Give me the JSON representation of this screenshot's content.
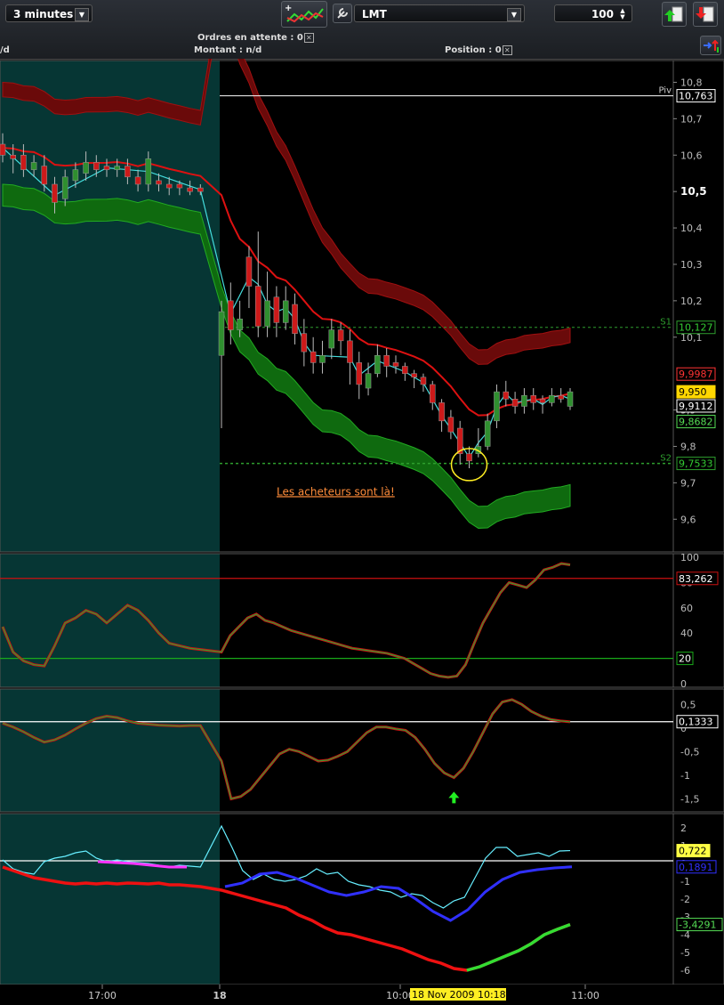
{
  "toolbar": {
    "timeframe": "3 minutes",
    "symbol": "LMT",
    "quantity": "100",
    "pending_orders_label": "Ordres en attente : 0",
    "amount_label": "Montant : n/d",
    "position_label": "Position : 0",
    "left_cut_label": "/d"
  },
  "chart_data": [
    {
      "type": "candlestick",
      "panel": "price",
      "y_ticks": [
        "10,8",
        "10,7",
        "10,6",
        "10,5",
        "10,4",
        "10,3",
        "10,2",
        "10,1",
        "9,9",
        "9,8",
        "9,7",
        "9,6"
      ],
      "ylim": [
        9.52,
        10.85
      ],
      "levels": [
        {
          "name": "Piv",
          "value": 10.763,
          "label": "10,763",
          "color": "#ffffff"
        },
        {
          "name": "S1",
          "value": 10.127,
          "label": "10,127",
          "color": "#2e9e2e"
        },
        {
          "name": "S2",
          "value": 9.7533,
          "label": "9,7533",
          "color": "#2e9e2e"
        }
      ],
      "value_tags": [
        {
          "value": 9.9987,
          "label": "9,9987",
          "color": "#ff3333",
          "bg": "#000000"
        },
        {
          "value": 9.95,
          "label": "9,950",
          "color": "#000000",
          "bg": "#ffd700"
        },
        {
          "value": 9.9112,
          "label": "9,9112",
          "color": "#ffffff",
          "bg": "#000000"
        },
        {
          "value": 9.8682,
          "label": "9,8682",
          "color": "#55dd55",
          "bg": "#000000"
        }
      ],
      "annotation": "Les acheteurs sont là!",
      "candles": [
        [
          10.63,
          10.6,
          10.66,
          10.58
        ],
        [
          10.6,
          10.59,
          10.63,
          10.55
        ],
        [
          10.6,
          10.56,
          10.63,
          10.54
        ],
        [
          10.56,
          10.58,
          10.6,
          10.54
        ],
        [
          10.57,
          10.52,
          10.6,
          10.5
        ],
        [
          10.52,
          10.47,
          10.54,
          10.44
        ],
        [
          10.48,
          10.54,
          10.56,
          10.46
        ],
        [
          10.53,
          10.56,
          10.58,
          10.51
        ],
        [
          10.55,
          10.58,
          10.61,
          10.53
        ],
        [
          10.58,
          10.56,
          10.6,
          10.54
        ],
        [
          10.57,
          10.56,
          10.59,
          10.54
        ],
        [
          10.56,
          10.57,
          10.59,
          10.54
        ],
        [
          10.57,
          10.54,
          10.59,
          10.52
        ],
        [
          10.54,
          10.52,
          10.56,
          10.5
        ],
        [
          10.52,
          10.59,
          10.61,
          10.5
        ],
        [
          10.53,
          10.52,
          10.55,
          10.5
        ],
        [
          10.52,
          10.51,
          10.54,
          10.49
        ],
        [
          10.52,
          10.51,
          10.53,
          10.49
        ],
        [
          10.51,
          10.5,
          10.53,
          10.49
        ],
        [
          10.51,
          10.5,
          10.52,
          10.49
        ],
        [
          10.05,
          10.17,
          10.2,
          9.85
        ],
        [
          10.2,
          10.12,
          10.25,
          10.08
        ],
        [
          10.12,
          10.15,
          10.2,
          10.1
        ],
        [
          10.32,
          10.24,
          10.35,
          10.18
        ],
        [
          10.24,
          10.13,
          10.39,
          10.1
        ],
        [
          10.13,
          10.2,
          10.28,
          10.1
        ],
        [
          10.21,
          10.14,
          10.24,
          10.1
        ],
        [
          10.14,
          10.2,
          10.24,
          10.12
        ],
        [
          10.19,
          10.11,
          10.22,
          10.08
        ],
        [
          10.11,
          10.06,
          10.15,
          10.02
        ],
        [
          10.06,
          10.03,
          10.1,
          10.0
        ],
        [
          10.03,
          10.05,
          10.09,
          10.0
        ],
        [
          10.07,
          10.12,
          10.15,
          10.04
        ],
        [
          10.12,
          10.09,
          10.14,
          10.05
        ],
        [
          10.09,
          10.03,
          10.12,
          9.97
        ],
        [
          10.03,
          9.97,
          10.06,
          9.93
        ],
        [
          9.96,
          10.0,
          10.03,
          9.94
        ],
        [
          10.0,
          10.05,
          10.08,
          9.99
        ],
        [
          10.05,
          10.02,
          10.07,
          9.99
        ],
        [
          10.03,
          10.02,
          10.05,
          10.0
        ],
        [
          10.02,
          10.0,
          10.03,
          9.98
        ],
        [
          10.0,
          9.99,
          10.01,
          9.96
        ],
        [
          9.99,
          9.97,
          10.0,
          9.95
        ],
        [
          9.97,
          9.92,
          9.98,
          9.9
        ],
        [
          9.92,
          9.87,
          9.93,
          9.84
        ],
        [
          9.88,
          9.84,
          9.9,
          9.82
        ],
        [
          9.85,
          9.78,
          9.87,
          9.75
        ],
        [
          9.78,
          9.76,
          9.8,
          9.74
        ],
        [
          9.78,
          9.8,
          9.85,
          9.77
        ],
        [
          9.8,
          9.87,
          9.89,
          9.79
        ],
        [
          9.87,
          9.95,
          9.97,
          9.85
        ],
        [
          9.95,
          9.93,
          9.98,
          9.91
        ],
        [
          9.93,
          9.91,
          9.95,
          9.89
        ],
        [
          9.91,
          9.94,
          9.96,
          9.89
        ],
        [
          9.94,
          9.92,
          9.96,
          9.9
        ],
        [
          9.93,
          9.92,
          9.94,
          9.89
        ],
        [
          9.92,
          9.94,
          9.96,
          9.91
        ],
        [
          9.94,
          9.93,
          9.96,
          9.92
        ],
        [
          9.91,
          9.95,
          9.96,
          9.9
        ]
      ]
    },
    {
      "type": "line",
      "panel": "stochastic",
      "y_ticks": [
        "100",
        "80",
        "60",
        "40",
        "20",
        "0"
      ],
      "ylim": [
        0,
        100
      ],
      "levels": [
        {
          "value": 83.262,
          "label": "83,262",
          "color": "#cc1111"
        },
        {
          "value": 20,
          "label": "20",
          "color": "#1aaa1a"
        }
      ],
      "values": [
        45,
        25,
        18,
        15,
        14,
        30,
        48,
        52,
        58,
        55,
        48,
        55,
        62,
        58,
        50,
        40,
        32,
        30,
        28,
        27,
        25,
        38,
        45,
        52,
        55,
        50,
        48,
        45,
        42,
        40,
        38,
        36,
        34,
        32,
        30,
        28,
        27,
        26,
        25,
        24,
        22,
        20,
        16,
        12,
        8,
        6,
        5,
        6,
        15,
        32,
        48,
        60,
        72,
        80,
        78,
        76,
        82,
        90,
        92,
        95,
        94
      ]
    },
    {
      "type": "line",
      "panel": "oscillator",
      "y_ticks": [
        "0,5",
        "0",
        "-0,5",
        "-1",
        "-1,5"
      ],
      "ylim": [
        -1.7,
        0.75
      ],
      "levels": [
        {
          "value": 0.1333,
          "label": "0,1333",
          "color": "#ffffff"
        }
      ],
      "values": [
        0.1,
        0.02,
        -0.08,
        -0.2,
        -0.3,
        -0.25,
        -0.15,
        -0.02,
        0.1,
        0.2,
        0.25,
        0.22,
        0.15,
        0.1,
        0.08,
        0.06,
        0.05,
        0.04,
        0.05,
        0.05,
        -0.7,
        -1.5,
        -1.45,
        -1.3,
        -1.05,
        -0.8,
        -0.55,
        -0.45,
        -0.5,
        -0.6,
        -0.7,
        -0.68,
        -0.6,
        -0.5,
        -0.3,
        -0.1,
        0.02,
        0.02,
        -0.02,
        -0.05,
        -0.2,
        -0.45,
        -0.75,
        -0.95,
        -1.05,
        -0.85,
        -0.5,
        -0.1,
        0.3,
        0.55,
        0.6,
        0.5,
        0.35,
        0.25,
        0.18,
        0.15,
        0.13
      ]
    },
    {
      "type": "line",
      "panel": "trend",
      "y_ticks": [
        "2",
        "1",
        "0",
        "-1",
        "-2",
        "-3",
        "-4",
        "-5",
        "-6"
      ],
      "ylim": [
        -6.6,
        2.6
      ],
      "levels": [
        {
          "value": 0.15,
          "label": "",
          "color": "#ffffff"
        }
      ],
      "value_tags": [
        {
          "value": 0.722,
          "label": "0,722",
          "color": "#000000",
          "bg": "#ffff44"
        },
        {
          "value": -0.1891,
          "label": "0,1891",
          "color": "#3030ff",
          "bg": "#000000"
        },
        {
          "value": -3.4291,
          "label": "-3,4291",
          "color": "#55dd55",
          "bg": "#000000"
        }
      ],
      "series": [
        {
          "color": "#66eeff",
          "values": [
            0.2,
            -0.3,
            -0.5,
            -0.6,
            0.1,
            0.3,
            0.4,
            0.6,
            0.7,
            0.3,
            0.1,
            0.2,
            0.1,
            0.05,
            0.0,
            -0.1,
            -0.2,
            -0.1,
            -0.15,
            -0.2,
            2.1,
            0.9,
            -0.4,
            -0.9,
            -0.6,
            -0.9,
            -1.0,
            -0.9,
            -0.7,
            -0.3,
            -0.6,
            -0.5,
            -1.0,
            -1.2,
            -1.3,
            -1.5,
            -1.6,
            -1.9,
            -1.7,
            -1.8,
            -2.2,
            -2.5,
            -2.1,
            -1.9,
            -0.8,
            0.3,
            0.9,
            0.9,
            0.4,
            0.5,
            0.6,
            0.4,
            0.7,
            0.722
          ]
        },
        {
          "color": "#3030ff",
          "segments": [
            {
              "color": "#ff33ff",
              "values": [
                0.1,
                0.05,
                0.0,
                -0.1,
                -0.2,
                -0.2
              ]
            },
            {
              "color": "#3030ff",
              "values": [
                -1.3,
                -1.1,
                -0.6,
                -0.5,
                -0.8,
                -1.2,
                -1.6,
                -1.8,
                -1.6,
                -1.3,
                -1.4,
                -2.0,
                -2.7,
                -3.2,
                -2.6,
                -1.6,
                -0.9,
                -0.5,
                -0.35,
                -0.25,
                -0.19
              ]
            }
          ]
        },
        {
          "color": "#ee1111",
          "values": [
            -0.2,
            -0.4,
            -0.6,
            -0.8,
            -0.9,
            -1.0,
            -1.1,
            -1.15,
            -1.1,
            -1.15,
            -1.1,
            -1.15,
            -1.1,
            -1.12,
            -1.15,
            -1.1,
            -1.2,
            -1.2,
            -1.25,
            -1.3,
            -1.5,
            -1.7,
            -1.9,
            -2.1,
            -2.3,
            -2.5,
            -2.9,
            -3.2,
            -3.6,
            -3.9,
            -4.0,
            -4.2,
            -4.4,
            -4.6,
            -4.8,
            -5.1,
            -5.4,
            -5.6,
            -5.9,
            -6.0,
            -5.8,
            -5.5,
            -5.2,
            -4.9,
            -4.5,
            -4.0,
            -3.7,
            -3.43
          ]
        }
      ]
    }
  ],
  "x_axis": {
    "labels": [
      "17:00",
      "18",
      "10:00",
      "11:00"
    ],
    "tooltip": "18 Nov 2009 10:18"
  }
}
